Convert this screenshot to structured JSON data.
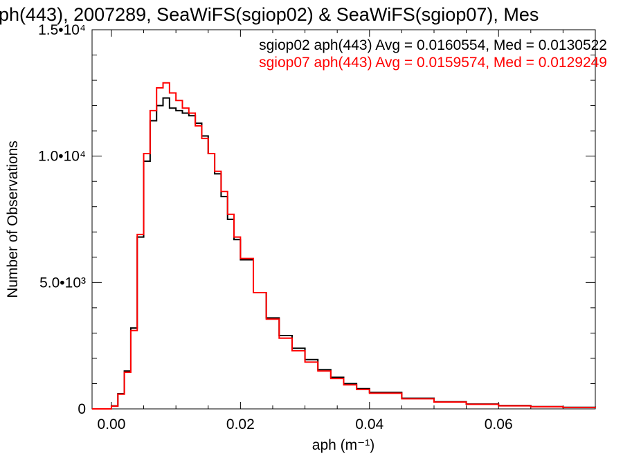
{
  "chart_data": {
    "type": "line",
    "title": "ph(443), 2007289, SeaWiFS(sgiop02) & SeaWiFS(sgiop07), Mes",
    "xlabel": "aph (m⁻¹)",
    "ylabel": "Number of Observations",
    "xlim": [
      -0.003,
      0.075
    ],
    "ylim": [
      0,
      15000
    ],
    "x_ticks": [
      {
        "value": 0.0,
        "label": "0.00"
      },
      {
        "value": 0.02,
        "label": "0.02"
      },
      {
        "value": 0.04,
        "label": "0.04"
      },
      {
        "value": 0.06,
        "label": "0.06"
      }
    ],
    "y_ticks": [
      {
        "value": 0,
        "label": "0"
      },
      {
        "value": 5000,
        "label": "5.0•10³"
      },
      {
        "value": 10000,
        "label": "1.0•10⁴"
      },
      {
        "value": 15000,
        "label": "1.5•10⁴"
      }
    ],
    "grid": false,
    "step": true,
    "legend_position": "top-right",
    "series": [
      {
        "name": "sgiop02 aph(443) Avg = 0.0160554, Med = 0.0130522",
        "color": "#000000",
        "x": [
          -0.003,
          0.0,
          0.001,
          0.002,
          0.003,
          0.004,
          0.005,
          0.006,
          0.007,
          0.008,
          0.009,
          0.01,
          0.011,
          0.012,
          0.013,
          0.014,
          0.015,
          0.016,
          0.017,
          0.018,
          0.019,
          0.02,
          0.022,
          0.024,
          0.026,
          0.028,
          0.03,
          0.032,
          0.034,
          0.036,
          0.038,
          0.04,
          0.045,
          0.05,
          0.055,
          0.06,
          0.065,
          0.07,
          0.075
        ],
        "y": [
          0,
          120,
          600,
          1500,
          3200,
          6800,
          9800,
          11400,
          12000,
          12300,
          11900,
          11800,
          11700,
          11600,
          11300,
          10800,
          10100,
          9300,
          8400,
          7500,
          6700,
          5900,
          4600,
          3600,
          2900,
          2400,
          1950,
          1550,
          1250,
          1000,
          800,
          650,
          420,
          280,
          190,
          130,
          90,
          60,
          40
        ]
      },
      {
        "name": "sgiop07 aph(443) Avg = 0.0159574, Med = 0.0129249",
        "color": "#ff0000",
        "x": [
          -0.003,
          0.0,
          0.001,
          0.002,
          0.003,
          0.004,
          0.005,
          0.006,
          0.007,
          0.008,
          0.009,
          0.01,
          0.011,
          0.012,
          0.013,
          0.014,
          0.015,
          0.016,
          0.017,
          0.018,
          0.019,
          0.02,
          0.022,
          0.024,
          0.026,
          0.028,
          0.03,
          0.032,
          0.034,
          0.036,
          0.038,
          0.04,
          0.045,
          0.05,
          0.055,
          0.06,
          0.065,
          0.07,
          0.075
        ],
        "y": [
          0,
          110,
          580,
          1450,
          3100,
          6900,
          10100,
          11800,
          12700,
          12900,
          12500,
          12200,
          11900,
          11700,
          11200,
          10700,
          10100,
          9400,
          8600,
          7700,
          6800,
          5950,
          4600,
          3550,
          2800,
          2300,
          1850,
          1500,
          1200,
          950,
          770,
          620,
          400,
          270,
          180,
          120,
          85,
          55,
          35
        ]
      }
    ]
  }
}
